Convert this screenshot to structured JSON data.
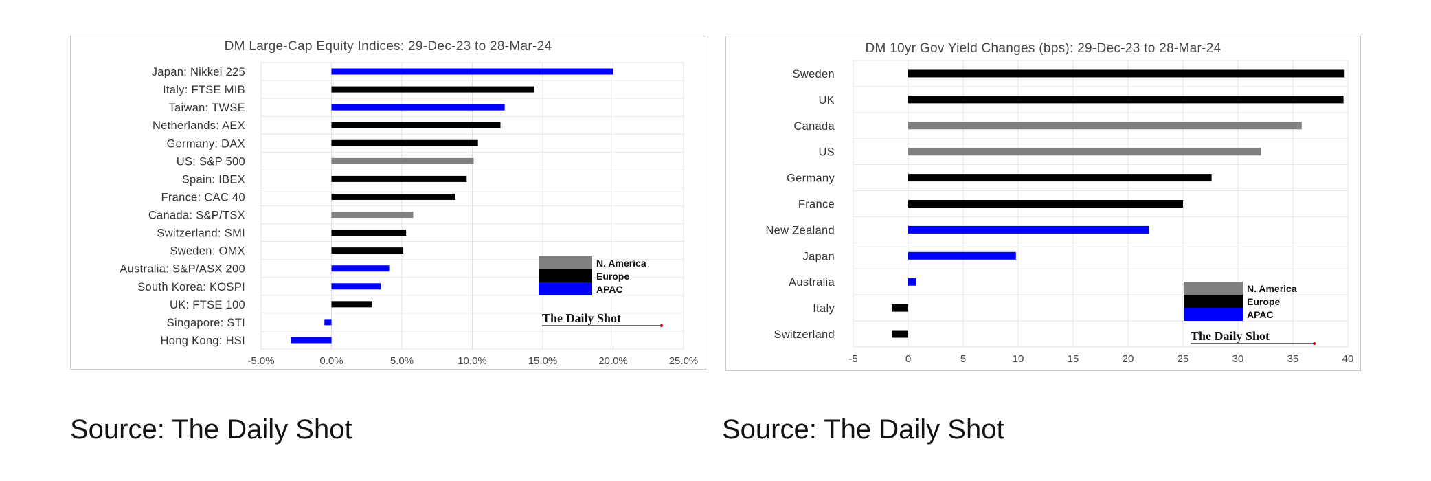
{
  "sources": [
    "Source: The Daily Shot",
    "Source: The Daily Shot"
  ],
  "chart_data": [
    {
      "type": "bar",
      "orientation": "horizontal",
      "title": "DM Large-Cap Equity Indices: 29-Dec-23 to 28-Mar-24",
      "categories": [
        "Japan: Nikkei 225",
        "Italy: FTSE MIB",
        "Taiwan: TWSE",
        "Netherlands: AEX",
        "Germany: DAX",
        "US: S&P 500",
        "Spain: IBEX",
        "France: CAC 40",
        "Canada: S&P/TSX",
        "Switzerland: SMI",
        "Sweden: OMX",
        "Australia: S&P/ASX 200",
        "South Korea: KOSPI",
        "UK: FTSE 100",
        "Singapore: STI",
        "Hong Kong: HSI"
      ],
      "values": [
        20.0,
        14.4,
        12.3,
        12.0,
        10.4,
        10.1,
        9.6,
        8.8,
        5.8,
        5.3,
        5.1,
        4.1,
        3.5,
        2.9,
        -0.5,
        -2.9
      ],
      "groups": [
        "APAC",
        "Europe",
        "APAC",
        "Europe",
        "Europe",
        "N. America",
        "Europe",
        "Europe",
        "N. America",
        "Europe",
        "Europe",
        "APAC",
        "APAC",
        "Europe",
        "APAC",
        "APAC"
      ],
      "xlim": [
        -5,
        25
      ],
      "xticks": [
        "-5.0%",
        "0.0%",
        "5.0%",
        "10.0%",
        "15.0%",
        "20.0%",
        "25.0%"
      ],
      "grid": true,
      "legend": {
        "position": "bottom-right",
        "entries": [
          "N. America",
          "Europe",
          "APAC"
        ]
      },
      "colors": {
        "N. America": "#808080",
        "Europe": "#000000",
        "APAC": "#0000ff"
      },
      "logo": "The Daily Shot"
    },
    {
      "type": "bar",
      "orientation": "horizontal",
      "title": "DM 10yr Gov Yield Changes (bps): 29-Dec-23 to 28-Mar-24",
      "categories": [
        "Sweden",
        "UK",
        "Canada",
        "US",
        "Germany",
        "France",
        "New Zealand",
        "Japan",
        "Australia",
        "Italy",
        "Switzerland"
      ],
      "values": [
        39.7,
        39.6,
        35.8,
        32.1,
        27.6,
        25.0,
        21.9,
        9.8,
        0.7,
        -1.5,
        -1.5
      ],
      "groups": [
        "Europe",
        "Europe",
        "N. America",
        "N. America",
        "Europe",
        "Europe",
        "APAC",
        "APAC",
        "APAC",
        "Europe",
        "Europe"
      ],
      "xlim": [
        -5,
        40
      ],
      "xticks": [
        "-5",
        "0",
        "5",
        "10",
        "15",
        "20",
        "25",
        "30",
        "35",
        "40"
      ],
      "grid": true,
      "legend": {
        "position": "bottom-right",
        "entries": [
          "N. America",
          "Europe",
          "APAC"
        ]
      },
      "colors": {
        "N. America": "#808080",
        "Europe": "#000000",
        "APAC": "#0000ff"
      },
      "logo": "The Daily Shot"
    }
  ]
}
